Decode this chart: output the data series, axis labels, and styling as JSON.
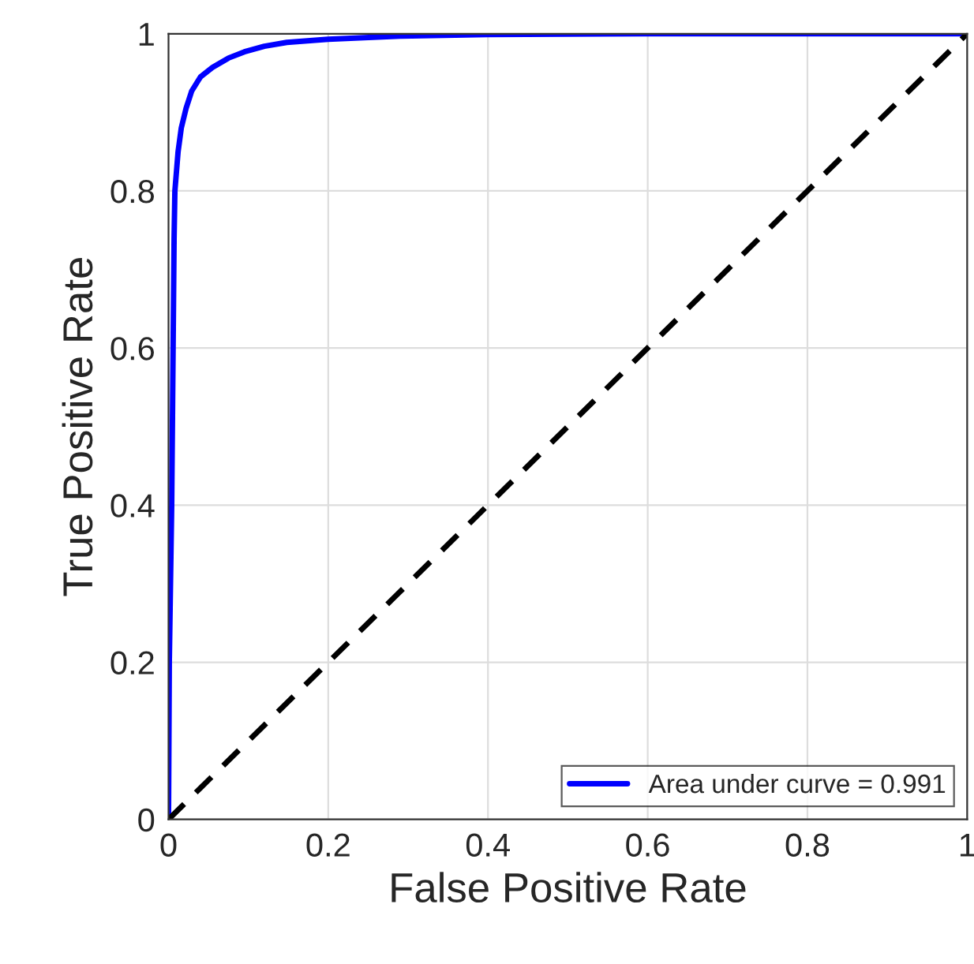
{
  "chart_data": {
    "type": "line",
    "xlabel": "False Positive Rate",
    "ylabel": "True Positive Rate",
    "xlim": [
      0,
      1
    ],
    "ylim": [
      0,
      1
    ],
    "xticks": [
      0,
      0.2,
      0.4,
      0.6,
      0.8,
      1
    ],
    "yticks": [
      0,
      0.2,
      0.4,
      0.6,
      0.8,
      1
    ],
    "grid": true,
    "legend": "bottom right",
    "series": [
      {
        "name": "Area under curve = 0.991",
        "color": "#0000ff",
        "line_style": "solid",
        "x": [
          0,
          0.001,
          0.004,
          0.007,
          0.008,
          0.012,
          0.016,
          0.022,
          0.029,
          0.04,
          0.055,
          0.075,
          0.095,
          0.12,
          0.148,
          0.2,
          0.29,
          0.4,
          0.6,
          0.8,
          1
        ],
        "values": [
          0,
          0.2,
          0.4,
          0.74,
          0.8,
          0.85,
          0.88,
          0.905,
          0.927,
          0.945,
          0.957,
          0.969,
          0.977,
          0.984,
          0.989,
          0.993,
          0.997,
          0.999,
          1,
          1,
          1
        ]
      },
      {
        "color": "#000000",
        "line_style": "dashed",
        "x": [
          0,
          1
        ],
        "values": [
          0,
          1
        ]
      }
    ]
  }
}
